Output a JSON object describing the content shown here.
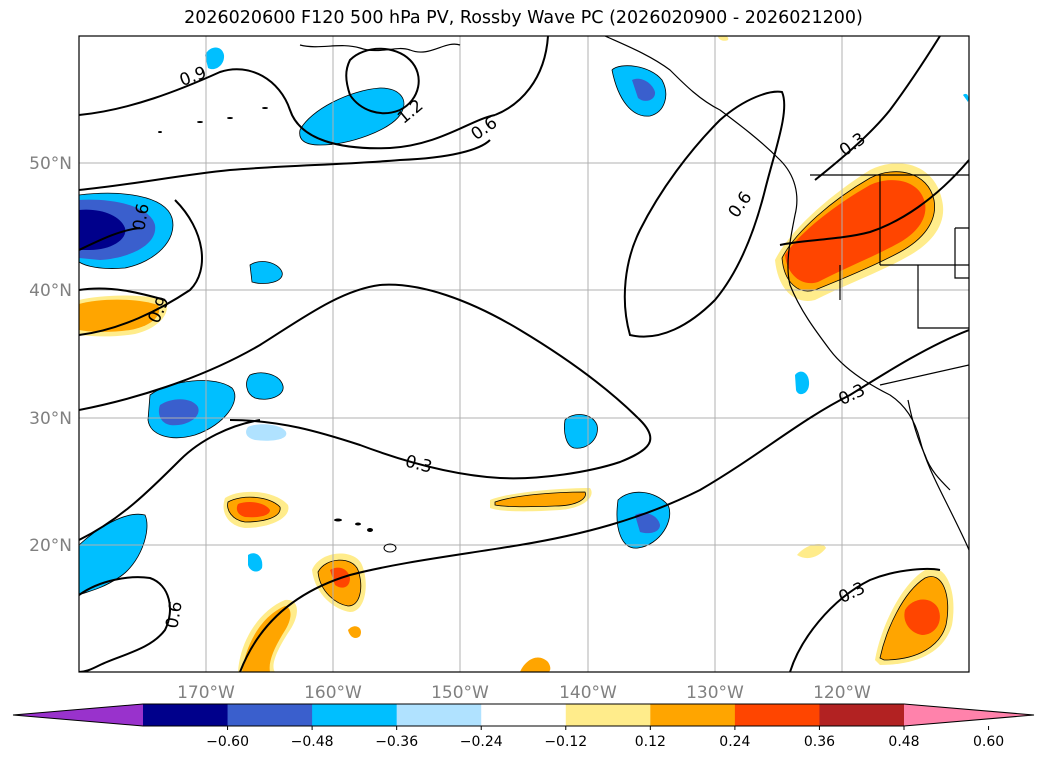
{
  "title": "2026020600 F120 500 hPa PV, Rossby Wave PC (2026020900 - 2026021200)",
  "map": {
    "lon_labels": [
      "170°W",
      "160°W",
      "150°W",
      "140°W",
      "130°W",
      "120°W"
    ],
    "lat_labels": [
      "50°N",
      "40°N",
      "30°N",
      "20°N"
    ],
    "contour_labels": [
      "0.9",
      "1.2",
      "0.6",
      "0.6",
      "0.6",
      "0.9",
      "0.3",
      "0.3",
      "0.3",
      "0.3",
      "0.6"
    ]
  },
  "colorbar": {
    "ticks": [
      "−0.60",
      "−0.48",
      "−0.36",
      "−0.24",
      "−0.12",
      "0.12",
      "0.24",
      "0.36",
      "0.48",
      "0.60"
    ],
    "colors": [
      "#9932cc",
      "#00008b",
      "#3a5fcd",
      "#00bfff",
      "#b0e2ff",
      "#ffffff",
      "#ffec8b",
      "#ffa500",
      "#ff4500",
      "#b22222",
      "#ff82ab"
    ]
  }
}
